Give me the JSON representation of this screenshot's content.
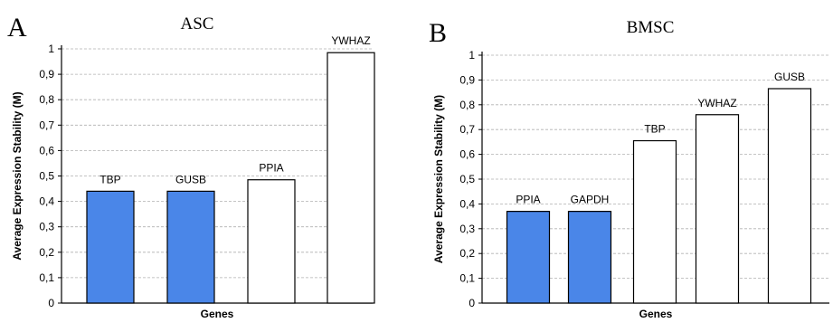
{
  "chart_data": [
    {
      "type": "bar",
      "panel": "A",
      "title": "ASC",
      "xlabel": "Genes",
      "ylabel": "Average Expression Stability (M)",
      "ylim": [
        0,
        1
      ],
      "yticks": [
        "0",
        "0,1",
        "0,2",
        "0,3",
        "0,4",
        "0,5",
        "0,6",
        "0,7",
        "0,8",
        "0,9",
        "1"
      ],
      "categories": [
        "TBP",
        "GUSB",
        "PPIA",
        "YWHAZ"
      ],
      "values": [
        0.44,
        0.44,
        0.485,
        0.985
      ],
      "colors": [
        "#4a86e8",
        "#4a86e8",
        "#ffffff",
        "#ffffff"
      ],
      "grid": true
    },
    {
      "type": "bar",
      "panel": "B",
      "title": "BMSC",
      "xlabel": "Genes",
      "ylabel": "Average Expression Stability (M)",
      "ylim": [
        0,
        1
      ],
      "yticks": [
        "0",
        "0,1",
        "0,2",
        "0,3",
        "0,4",
        "0,5",
        "0,6",
        "0,7",
        "0,8",
        "0,9",
        "1"
      ],
      "categories": [
        "PPIA",
        "GAPDH",
        "TBP",
        "YWHAZ",
        "GUSB"
      ],
      "values": [
        0.37,
        0.37,
        0.655,
        0.76,
        0.865
      ],
      "colors": [
        "#4a86e8",
        "#4a86e8",
        "#ffffff",
        "#ffffff",
        "#ffffff"
      ],
      "grid": true
    }
  ]
}
